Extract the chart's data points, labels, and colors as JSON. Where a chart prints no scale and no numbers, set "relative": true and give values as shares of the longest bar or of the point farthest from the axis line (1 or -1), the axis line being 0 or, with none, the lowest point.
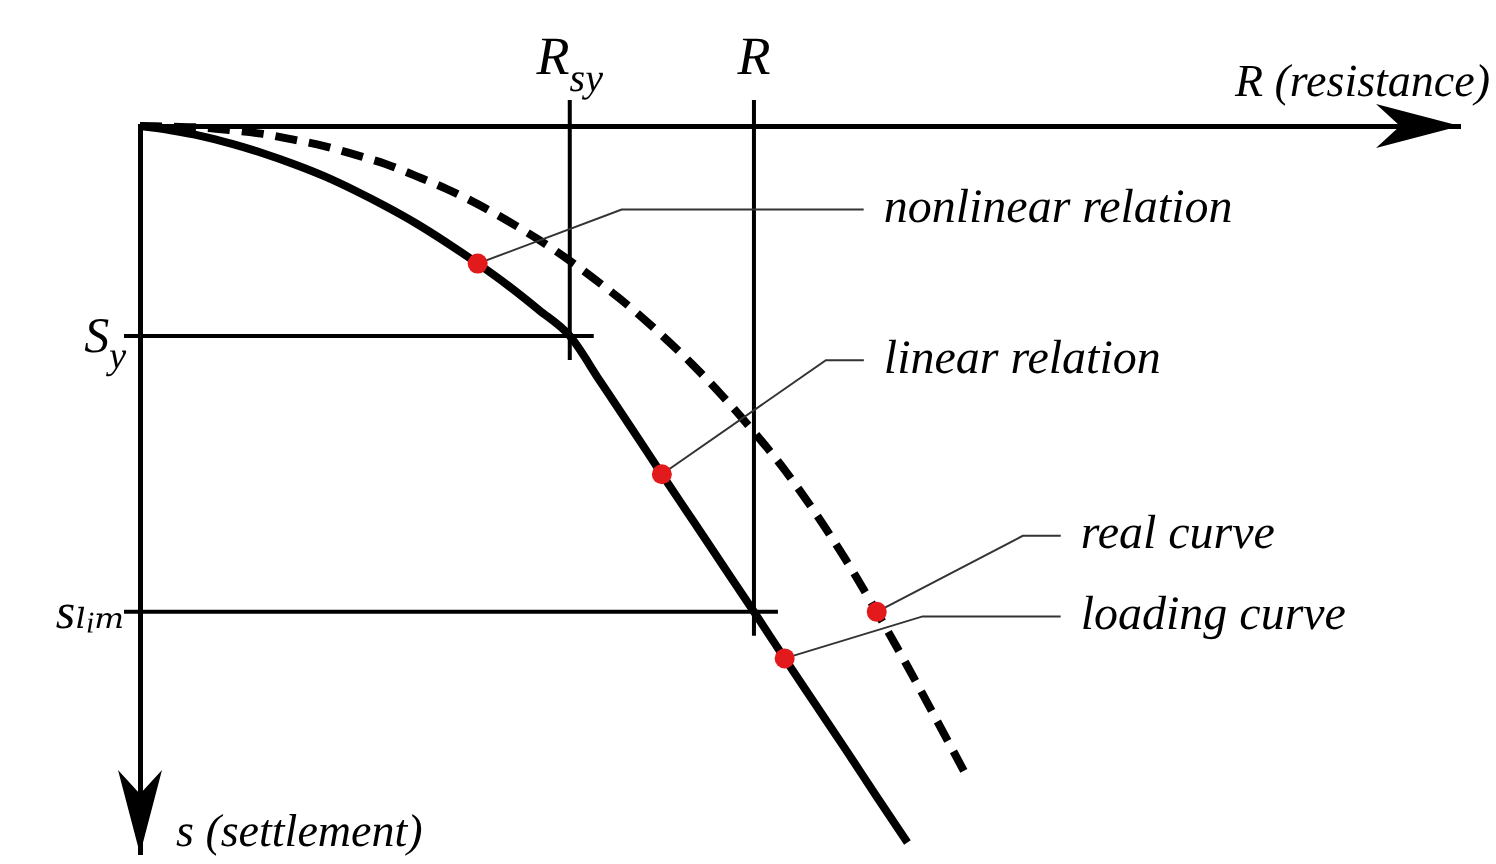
{
  "chart_data": {
    "type": "line",
    "relative": true,
    "xlabel": "R (resistance)",
    "ylabel": "s (settlement)",
    "marker": "none",
    "legend": false,
    "categories": [
      null,
      null,
      null,
      null,
      null,
      null,
      null,
      null,
      null,
      null,
      null,
      null,
      null,
      null,
      "R$_{sy}$",
      null,
      null,
      null,
      null,
      null,
      "R",
      null,
      null,
      null,
      null,
      null,
      null,
      null,
      null,
      null,
      null,
      null,
      null,
      null,
      null,
      null,
      null,
      null,
      null,
      null,
      null,
      null,
      null,
      null
    ],
    "series": [
      {
        "name": "loading curve",
        "color": "#000000",
        "line_style": "solid",
        "values": [
          0,
          -0.006,
          -0.014,
          -0.025,
          -0.038,
          -0.053,
          -0.07,
          -0.09,
          -0.112,
          -0.136,
          -0.163,
          -0.192,
          -0.223,
          -0.257,
          -0.293,
          -0.357,
          -0.421,
          -0.486,
          -0.55,
          -0.614,
          -0.678,
          -0.743,
          -0.807,
          -0.871,
          -0.936,
          -1,
          null,
          null,
          null,
          null,
          null,
          null,
          null,
          null,
          null,
          null,
          null,
          null,
          null,
          null,
          null,
          null,
          null,
          null
        ]
      },
      {
        "name": "real curve",
        "color": "#000000",
        "line_style": "dashed",
        "values": [
          0,
          -0.001,
          -0.002,
          -0.006,
          -0.011,
          -0.019,
          -0.028,
          -0.04,
          -0.053,
          -0.07,
          -0.088,
          -0.109,
          -0.133,
          -0.159,
          -0.188,
          -0.22,
          -0.254,
          -0.292,
          -0.333,
          -0.378,
          -0.427,
          -0.48,
          -0.54,
          -0.606,
          -0.678,
          -0.754,
          -0.833,
          -0.913,
          null,
          null,
          null,
          null,
          null,
          null,
          null,
          null,
          null,
          null,
          null,
          null,
          null,
          null,
          null,
          null
        ]
      }
    ],
    "ref_lines": [
      {
        "axis": "x",
        "value": "R$_{sy}$"
      },
      {
        "axis": "x",
        "value": "R"
      },
      {
        "axis": "y",
        "value": -0.293,
        "label": "S$_{y}$"
      },
      {
        "axis": "y",
        "value": -0.678,
        "label": "sₗᵢₘ"
      }
    ],
    "annotations": [
      "nonlinear relation",
      "linear relation"
    ]
  }
}
